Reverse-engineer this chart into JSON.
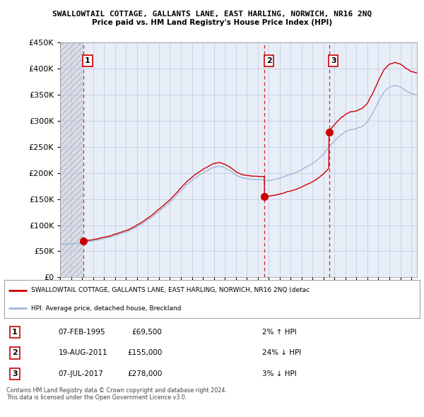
{
  "title": "SWALLOWTAIL COTTAGE, GALLANTS LANE, EAST HARLING, NORWICH, NR16 2NQ",
  "subtitle": "Price paid vs. HM Land Registry's House Price Index (HPI)",
  "legend_line1": "SWALLOWTAIL COTTAGE, GALLANTS LANE, EAST HARLING, NORWICH, NR16 2NQ (detac",
  "legend_line2": "HPI: Average price, detached house, Breckland",
  "table_rows": [
    [
      "1",
      "07-FEB-1995",
      "£69,500",
      "2% ↑ HPI"
    ],
    [
      "2",
      "19-AUG-2011",
      "£155,000",
      "24% ↓ HPI"
    ],
    [
      "3",
      "07-JUL-2017",
      "£278,000",
      "3% ↓ HPI"
    ]
  ],
  "footer": "Contains HM Land Registry data © Crown copyright and database right 2024.\nThis data is licensed under the Open Government Licence v3.0.",
  "sale_dates": [
    1995.096,
    2011.632,
    2017.51
  ],
  "sale_prices": [
    69500,
    155000,
    278000
  ],
  "sale_labels": [
    "1",
    "2",
    "3"
  ],
  "vline_dates": [
    1995.096,
    2011.632,
    2017.51
  ],
  "ylim": [
    0,
    450000
  ],
  "xlim_start": 1993.0,
  "xlim_end": 2025.5,
  "background_color": "#e8eef8",
  "hpi_color": "#a0b8d8",
  "price_color": "#cc0000",
  "vline_color": "#cc0000",
  "grid_color": "#c0c8d8"
}
